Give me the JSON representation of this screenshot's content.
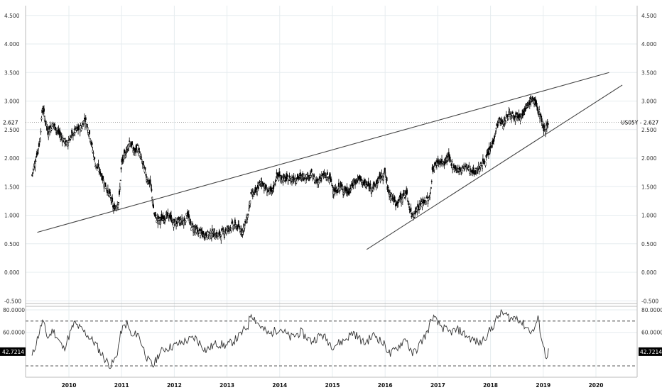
{
  "chart_data": [
    {
      "type": "candlestick",
      "symbol": "US05Y",
      "series_label": "US05Y - 2.627",
      "last_value": "2.627",
      "x_ticks": [
        "2010",
        "2011",
        "2012",
        "2013",
        "2014",
        "2015",
        "2016",
        "2017",
        "2018",
        "2019",
        "2020"
      ],
      "y_ticks": [
        "4.500",
        "4.000",
        "3.500",
        "3.000",
        "2.500",
        "2.000",
        "1.500",
        "1.000",
        "0.500",
        "0.000",
        "-0.500"
      ],
      "ylim": [
        -0.5,
        4.5
      ],
      "grid": true,
      "path": [
        [
          2009.3,
          1.7
        ],
        [
          2009.45,
          2.3
        ],
        [
          2009.5,
          2.9
        ],
        [
          2009.6,
          2.45
        ],
        [
          2009.7,
          2.6
        ],
        [
          2009.8,
          2.45
        ],
        [
          2009.95,
          2.25
        ],
        [
          2010.1,
          2.45
        ],
        [
          2010.25,
          2.55
        ],
        [
          2010.3,
          2.7
        ],
        [
          2010.4,
          2.4
        ],
        [
          2010.5,
          1.9
        ],
        [
          2010.6,
          1.75
        ],
        [
          2010.7,
          1.5
        ],
        [
          2010.8,
          1.3
        ],
        [
          2010.85,
          1.1
        ],
        [
          2010.95,
          1.25
        ],
        [
          2011.0,
          1.9
        ],
        [
          2011.1,
          2.15
        ],
        [
          2011.15,
          2.3
        ],
        [
          2011.25,
          2.1
        ],
        [
          2011.3,
          2.2
        ],
        [
          2011.4,
          1.9
        ],
        [
          2011.5,
          1.6
        ],
        [
          2011.55,
          1.55
        ],
        [
          2011.62,
          1.0
        ],
        [
          2011.7,
          0.9
        ],
        [
          2011.8,
          0.95
        ],
        [
          2011.9,
          1.0
        ],
        [
          2012.0,
          0.85
        ],
        [
          2012.1,
          0.9
        ],
        [
          2012.2,
          0.9
        ],
        [
          2012.25,
          1.05
        ],
        [
          2012.3,
          0.85
        ],
        [
          2012.4,
          0.75
        ],
        [
          2012.55,
          0.65
        ],
        [
          2012.7,
          0.68
        ],
        [
          2012.85,
          0.65
        ],
        [
          2012.95,
          0.72
        ],
        [
          2013.1,
          0.82
        ],
        [
          2013.2,
          0.8
        ],
        [
          2013.3,
          0.72
        ],
        [
          2013.4,
          1.0
        ],
        [
          2013.45,
          1.35
        ],
        [
          2013.55,
          1.4
        ],
        [
          2013.65,
          1.6
        ],
        [
          2013.75,
          1.45
        ],
        [
          2013.85,
          1.4
        ],
        [
          2013.95,
          1.7
        ],
        [
          2014.1,
          1.62
        ],
        [
          2014.3,
          1.65
        ],
        [
          2014.5,
          1.68
        ],
        [
          2014.6,
          1.72
        ],
        [
          2014.7,
          1.55
        ],
        [
          2014.8,
          1.7
        ],
        [
          2014.95,
          1.65
        ],
        [
          2015.05,
          1.4
        ],
        [
          2015.15,
          1.5
        ],
        [
          2015.3,
          1.4
        ],
        [
          2015.4,
          1.55
        ],
        [
          2015.5,
          1.65
        ],
        [
          2015.6,
          1.55
        ],
        [
          2015.7,
          1.5
        ],
        [
          2015.8,
          1.5
        ],
        [
          2015.9,
          1.65
        ],
        [
          2016.0,
          1.75
        ],
        [
          2016.05,
          1.45
        ],
        [
          2016.15,
          1.3
        ],
        [
          2016.2,
          1.2
        ],
        [
          2016.3,
          1.3
        ],
        [
          2016.4,
          1.4
        ],
        [
          2016.45,
          1.2
        ],
        [
          2016.5,
          1.0
        ],
        [
          2016.55,
          1.05
        ],
        [
          2016.65,
          1.15
        ],
        [
          2016.75,
          1.25
        ],
        [
          2016.85,
          1.3
        ],
        [
          2016.9,
          1.8
        ],
        [
          2017.0,
          1.95
        ],
        [
          2017.1,
          1.9
        ],
        [
          2017.2,
          2.0
        ],
        [
          2017.3,
          1.85
        ],
        [
          2017.4,
          1.78
        ],
        [
          2017.5,
          1.85
        ],
        [
          2017.6,
          1.82
        ],
        [
          2017.7,
          1.75
        ],
        [
          2017.85,
          1.9
        ],
        [
          2017.95,
          2.05
        ],
        [
          2018.05,
          2.3
        ],
        [
          2018.15,
          2.65
        ],
        [
          2018.25,
          2.6
        ],
        [
          2018.35,
          2.8
        ],
        [
          2018.45,
          2.75
        ],
        [
          2018.55,
          2.75
        ],
        [
          2018.65,
          2.8
        ],
        [
          2018.72,
          2.95
        ],
        [
          2018.8,
          3.05
        ],
        [
          2018.85,
          2.95
        ],
        [
          2018.9,
          2.85
        ],
        [
          2018.95,
          2.75
        ],
        [
          2019.0,
          2.5
        ],
        [
          2019.05,
          2.55
        ],
        [
          2019.1,
          2.627
        ]
      ],
      "trendlines": [
        {
          "from": [
            2009.4,
            0.7
          ],
          "to": [
            2020.25,
            3.5
          ]
        },
        {
          "from": [
            2015.65,
            0.4
          ],
          "to": [
            2020.5,
            3.28
          ]
        }
      ]
    },
    {
      "type": "line",
      "indicator": "RSI",
      "last_value": "42.7214",
      "y_ticks": [
        "80.0000",
        "60.0000"
      ],
      "ylim": [
        25,
        82
      ],
      "reference_lines": [
        70,
        30
      ],
      "x": [
        2009.3,
        2009.5,
        2009.6,
        2009.7,
        2009.9,
        2010.1,
        2010.3,
        2010.5,
        2010.6,
        2010.7,
        2010.8,
        2010.9,
        2011.0,
        2011.1,
        2011.2,
        2011.3,
        2011.5,
        2011.6,
        2011.7,
        2011.8,
        2012.0,
        2012.2,
        2012.4,
        2012.6,
        2012.8,
        2013.0,
        2013.2,
        2013.4,
        2013.45,
        2013.55,
        2013.7,
        2013.8,
        2014.0,
        2014.2,
        2014.4,
        2014.6,
        2014.8,
        2015.0,
        2015.2,
        2015.4,
        2015.6,
        2015.8,
        2016.0,
        2016.1,
        2016.2,
        2016.4,
        2016.5,
        2016.6,
        2016.8,
        2016.9,
        2017.0,
        2017.2,
        2017.4,
        2017.6,
        2017.8,
        2018.0,
        2018.1,
        2018.2,
        2018.4,
        2018.5,
        2018.6,
        2018.8,
        2018.9,
        2019.0,
        2019.05,
        2019.1
      ],
      "values": [
        38,
        70,
        55,
        62,
        45,
        68,
        60,
        50,
        42,
        35,
        30,
        38,
        62,
        68,
        55,
        60,
        35,
        30,
        40,
        45,
        48,
        52,
        55,
        44,
        50,
        48,
        55,
        66,
        78,
        70,
        62,
        58,
        64,
        55,
        60,
        52,
        58,
        48,
        52,
        60,
        50,
        58,
        48,
        40,
        45,
        55,
        40,
        45,
        60,
        74,
        68,
        60,
        62,
        55,
        50,
        62,
        70,
        78,
        72,
        74,
        68,
        60,
        72,
        48,
        38,
        42.72
      ]
    }
  ]
}
